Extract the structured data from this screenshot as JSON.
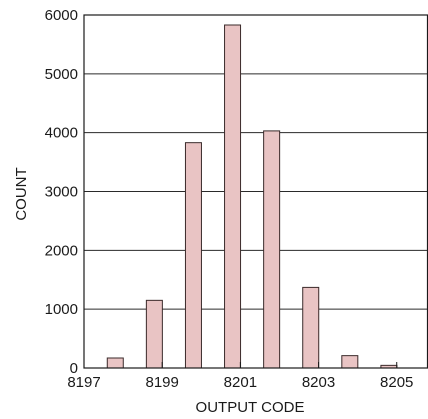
{
  "chart_data": {
    "type": "bar",
    "title": "",
    "xlabel": "OUTPUT CODE",
    "ylabel": "COUNT",
    "xlim": [
      8197,
      8205.8
    ],
    "ylim": [
      0,
      6000
    ],
    "x_ticks": [
      "8197",
      "8199",
      "8201",
      "8203",
      "8205"
    ],
    "y_ticks": [
      "0",
      "1000",
      "2000",
      "3000",
      "4000",
      "5000",
      "6000"
    ],
    "grid": "horizontal",
    "bar_color": "#e9c4c4",
    "bar_edge_color": "#3a2a2a",
    "bars": [
      {
        "x": 8197.8,
        "value": 170
      },
      {
        "x": 8198.8,
        "value": 1150
      },
      {
        "x": 8199.8,
        "value": 3830
      },
      {
        "x": 8200.8,
        "value": 5830
      },
      {
        "x": 8201.8,
        "value": 4030
      },
      {
        "x": 8202.8,
        "value": 1370
      },
      {
        "x": 8203.8,
        "value": 210
      },
      {
        "x": 8204.8,
        "value": 45
      }
    ]
  }
}
